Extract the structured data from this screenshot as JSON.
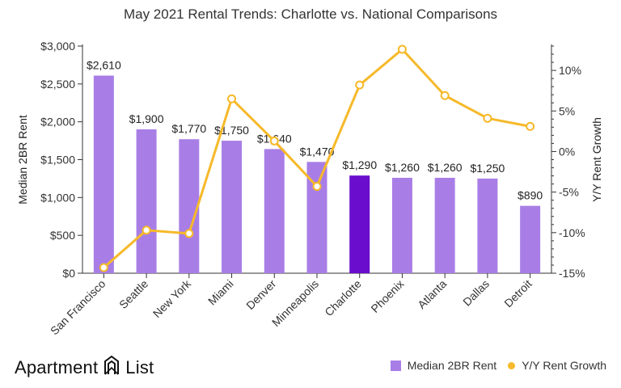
{
  "chart_data": {
    "type": "bar",
    "title": "May 2021 Rental Trends: Charlotte vs. National Comparisons",
    "categories": [
      "San Francisco",
      "Seattle",
      "New York",
      "Miami",
      "Denver",
      "Minneapolis",
      "Charlotte",
      "Phoenix",
      "Atlanta",
      "Dallas",
      "Detroit"
    ],
    "series": [
      {
        "name": "Median 2BR Rent",
        "type": "bar",
        "axis": "left",
        "values": [
          2610,
          1900,
          1770,
          1750,
          1640,
          1470,
          1290,
          1260,
          1260,
          1250,
          890
        ],
        "labels": [
          "$2,610",
          "$1,900",
          "$1,770",
          "$1,750",
          "$1,640",
          "$1,470",
          "$1,290",
          "$1,260",
          "$1,260",
          "$1,250",
          "$890"
        ],
        "color": "#a87ee6",
        "highlight_color": "#6a0dcc",
        "highlight_category": "Charlotte"
      },
      {
        "name": "Y/Y Rent Growth",
        "type": "line",
        "axis": "right",
        "values": [
          -14.3,
          -9.7,
          -10.1,
          6.5,
          1.3,
          -4.3,
          8.2,
          12.6,
          6.9,
          4.1,
          3.1
        ],
        "color": "#f6b929"
      }
    ],
    "ylabel": "Median 2BR Rent",
    "ylabel_right": "Y/Y Rent Growth",
    "ylim": [
      0,
      3000
    ],
    "ylim_right": [
      -15,
      13
    ],
    "yticks": [
      0,
      500,
      1000,
      1500,
      2000,
      2500,
      3000
    ],
    "ytick_labels": [
      "$0",
      "$500",
      "$1,000",
      "$1,500",
      "$2,000",
      "$2,500",
      "$3,000"
    ],
    "yticks_right": [
      -15,
      -10,
      -5,
      0,
      5,
      10
    ],
    "ytick_labels_right": [
      "-15%",
      "-10%",
      "-5%",
      "0%",
      "5%",
      "10%"
    ],
    "grid": false,
    "legend_position": "bottom-right"
  },
  "legend": {
    "bar_label": "Median 2BR Rent",
    "line_label": "Y/Y Rent Growth"
  },
  "logo": {
    "text_left": "Apartment",
    "text_right": "List"
  }
}
